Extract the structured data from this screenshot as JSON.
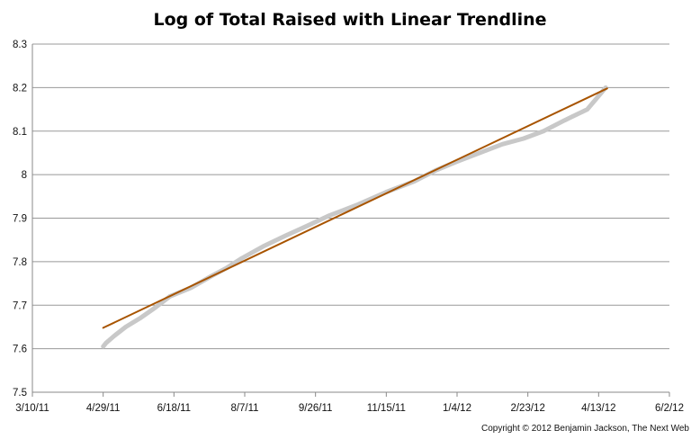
{
  "chart_data": {
    "type": "line",
    "title": "Log of Total Raised with Linear Trendline",
    "xlabel": "",
    "ylabel": "",
    "x_tick_labels": [
      "3/10/11",
      "4/29/11",
      "6/18/11",
      "8/7/11",
      "9/26/11",
      "11/15/11",
      "1/4/12",
      "2/23/12",
      "4/13/12",
      "6/2/12"
    ],
    "y_tick_labels": [
      "7.5",
      "7.6",
      "7.7",
      "7.8",
      "7.9",
      "8",
      "8.1",
      "8.2",
      "8.3"
    ],
    "xlim": [
      "2011-03-10",
      "2012-06-02"
    ],
    "ylim": [
      7.5,
      8.3
    ],
    "grid": "horizontal",
    "series": [
      {
        "color": "#c8c8c8",
        "x": [
          "2011-04-29",
          "2011-05-01",
          "2011-05-07",
          "2011-05-15",
          "2011-05-25",
          "2011-06-05",
          "2011-06-15",
          "2011-06-30",
          "2011-07-15",
          "2011-07-25",
          "2011-08-05",
          "2011-08-20",
          "2011-09-05",
          "2011-09-20",
          "2011-10-05",
          "2011-10-25",
          "2011-11-15",
          "2011-12-05",
          "2011-12-20",
          "2012-01-04",
          "2012-01-20",
          "2012-02-05",
          "2012-02-20",
          "2012-03-05",
          "2012-03-20",
          "2012-04-05",
          "2012-04-18"
        ],
        "values": [
          7.605,
          7.613,
          7.63,
          7.65,
          7.67,
          7.695,
          7.72,
          7.74,
          7.768,
          7.785,
          7.808,
          7.835,
          7.86,
          7.882,
          7.905,
          7.93,
          7.96,
          7.985,
          8.01,
          8.03,
          8.05,
          8.07,
          8.083,
          8.1,
          8.125,
          8.15,
          8.2
        ]
      },
      {
        "color": "#a85400",
        "x": [
          "2011-04-29",
          "2012-04-19"
        ],
        "values": [
          7.648,
          8.198
        ]
      }
    ]
  },
  "copyright": "Copyright © 2012 Benjamin Jackson, The Next Web"
}
